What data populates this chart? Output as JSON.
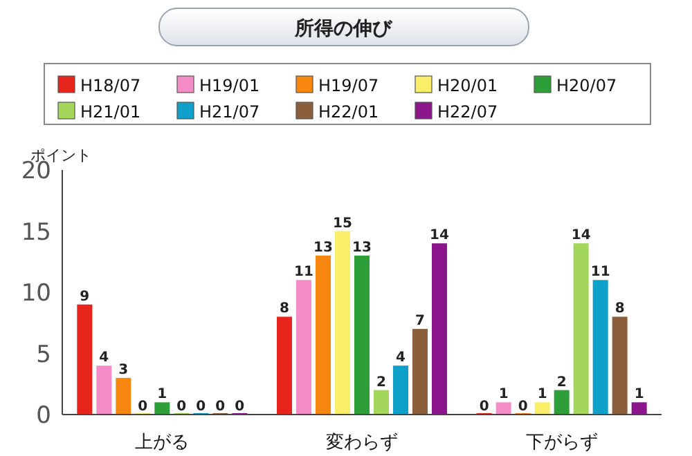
{
  "chart_data": {
    "type": "bar",
    "title": "所得の伸び",
    "ylabel": "ポイント",
    "categories": [
      "上がる",
      "変わらず",
      "下がらず"
    ],
    "series": [
      {
        "name": "H18/07",
        "color": "#e8251c",
        "values": [
          9,
          8,
          0
        ]
      },
      {
        "name": "H19/01",
        "color": "#f48cc8",
        "values": [
          4,
          11,
          1
        ]
      },
      {
        "name": "H19/07",
        "color": "#f7860f",
        "values": [
          3,
          13,
          0
        ]
      },
      {
        "name": "H20/01",
        "color": "#f9ed6a",
        "values": [
          0,
          15,
          1
        ]
      },
      {
        "name": "H20/07",
        "color": "#2e9e38",
        "values": [
          1,
          13,
          2
        ]
      },
      {
        "name": "H21/01",
        "color": "#a3d65a",
        "values": [
          0,
          2,
          14
        ]
      },
      {
        "name": "H21/07",
        "color": "#0ea0c8",
        "values": [
          0,
          4,
          11
        ]
      },
      {
        "name": "H22/01",
        "color": "#8b5e3c",
        "values": [
          0,
          7,
          8
        ]
      },
      {
        "name": "H22/07",
        "color": "#8b168b",
        "values": [
          0,
          14,
          1
        ]
      }
    ],
    "ylim": [
      0,
      20
    ],
    "yticks": [
      0,
      5,
      10,
      15,
      20
    ],
    "data_labels": true,
    "legend": "top",
    "grid": false
  }
}
